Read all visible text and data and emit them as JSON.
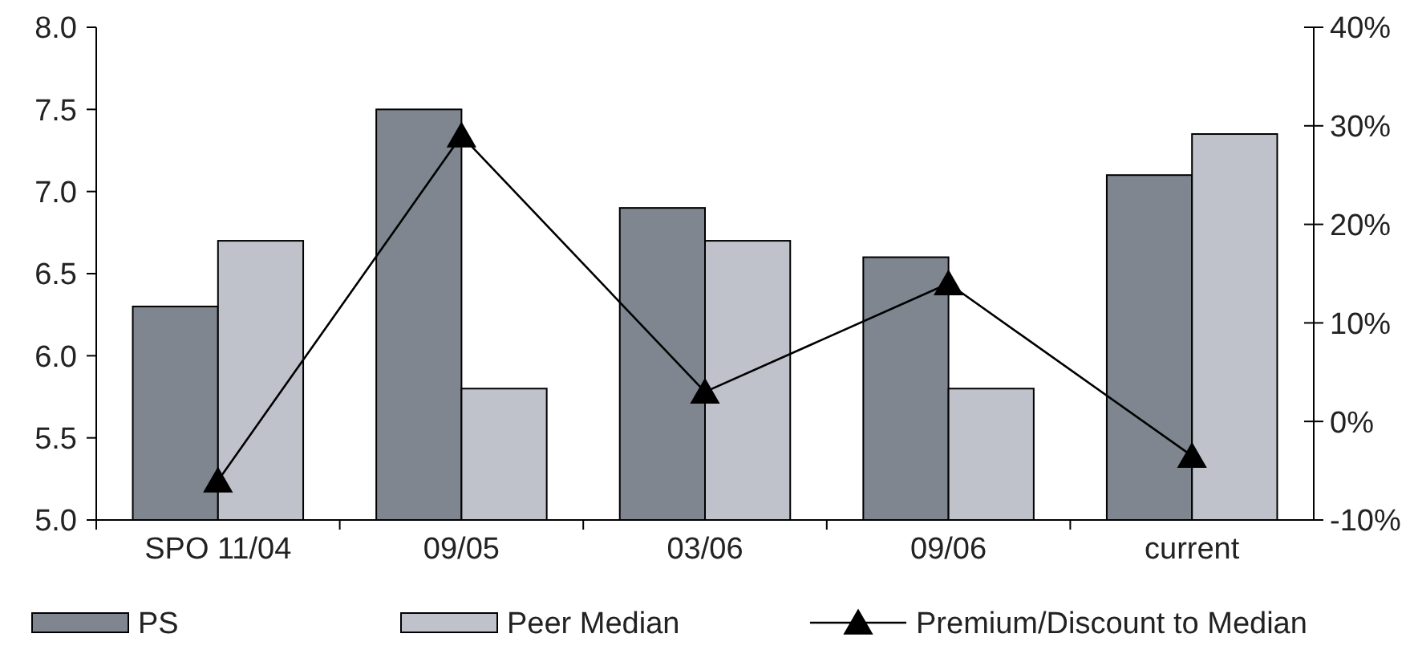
{
  "chart_data": {
    "type": "bar",
    "categories": [
      "SPO 11/04",
      "09/05",
      "03/06",
      "09/06",
      "current"
    ],
    "series": [
      {
        "name": "PS",
        "color": "#7f8690",
        "values": [
          6.3,
          7.5,
          6.9,
          6.6,
          7.1
        ]
      },
      {
        "name": "Peer Median",
        "color": "#c0c2cb",
        "values": [
          6.7,
          5.8,
          6.7,
          5.8,
          7.35
        ]
      },
      {
        "name": "Premium/Discount to Median",
        "type": "line",
        "axis": "y2",
        "color": "#000000",
        "marker": "triangle",
        "values": [
          -6,
          29,
          3,
          14,
          -3.5
        ]
      }
    ],
    "ylim": [
      5,
      8
    ],
    "yticks": [
      {
        "value": 5,
        "label": "5.0"
      },
      {
        "value": 5.5,
        "label": "5.5"
      },
      {
        "value": 6,
        "label": "6.0"
      },
      {
        "value": 6.5,
        "label": "6.5"
      },
      {
        "value": 7,
        "label": "7.0"
      },
      {
        "value": 7.5,
        "label": "7.5"
      },
      {
        "value": 8,
        "label": "8.0"
      }
    ],
    "y2lim": [
      -10,
      40
    ],
    "y2ticks": [
      {
        "value": -10,
        "label": "-10%"
      },
      {
        "value": 0,
        "label": "0%"
      },
      {
        "value": 10,
        "label": "10%"
      },
      {
        "value": 20,
        "label": "20%"
      },
      {
        "value": 30,
        "label": "30%"
      },
      {
        "value": 40,
        "label": "40%"
      }
    ],
    "grid": false,
    "legend": "bottom"
  }
}
